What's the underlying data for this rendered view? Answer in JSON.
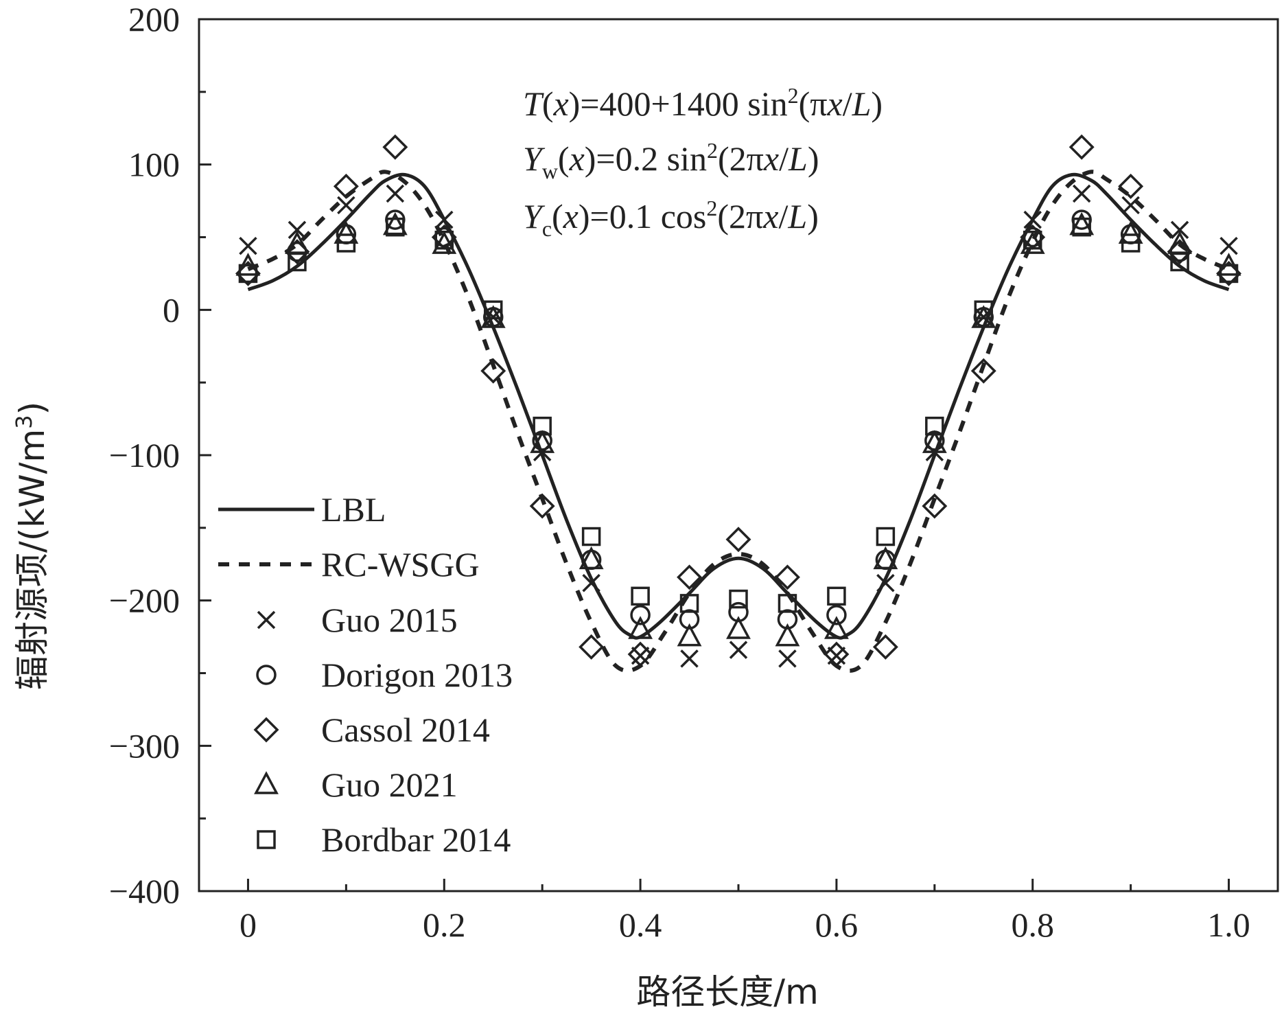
{
  "chart_data": {
    "type": "line",
    "xlabel": "路径长度/m",
    "ylabel": "辐射源项/(kW/m",
    "ylabel_sup": "3",
    "ylabel_end": ")",
    "xlim": [
      -0.05,
      1.05
    ],
    "ylim": [
      -400,
      200
    ],
    "xticks": [
      0,
      0.2,
      0.4,
      0.6,
      0.8,
      1.0
    ],
    "xtick_labels": [
      "0",
      "0.2",
      "0.4",
      "0.6",
      "0.8",
      "1.0"
    ],
    "yticks": [
      200,
      100,
      0,
      -100,
      -200,
      -300,
      -400
    ],
    "ytick_labels": [
      "200",
      "100",
      "0",
      "−100",
      "−200",
      "−300",
      "−400"
    ],
    "annotations": [
      {
        "parts": [
          "T",
          "(",
          "x",
          ")=400+1400 sin",
          "2",
          "(π",
          "x",
          "/",
          "L",
          ")"
        ]
      },
      {
        "parts": [
          "Y",
          "w",
          "(",
          "x",
          ")=0.2 sin",
          "2",
          "(2π",
          "x",
          "/",
          "L",
          ")"
        ]
      },
      {
        "parts": [
          "Y",
          "c",
          "(",
          "x",
          ")=0.1 cos",
          "2",
          "(2π",
          "x",
          "/",
          "L",
          ")"
        ]
      }
    ],
    "legend_position": "left",
    "series": [
      {
        "name": "LBL",
        "style": "solid-line",
        "x": [
          0,
          0.025,
          0.05,
          0.075,
          0.1,
          0.125,
          0.14,
          0.16,
          0.18,
          0.2,
          0.225,
          0.25,
          0.275,
          0.3,
          0.325,
          0.35,
          0.375,
          0.39,
          0.4,
          0.42,
          0.45,
          0.475,
          0.5,
          0.525,
          0.55,
          0.58,
          0.6,
          0.61,
          0.625,
          0.65,
          0.675,
          0.7,
          0.725,
          0.75,
          0.775,
          0.8,
          0.82,
          0.84,
          0.86,
          0.875,
          0.9,
          0.925,
          0.95,
          0.975,
          1.0
        ],
        "y": [
          14,
          20,
          30,
          45,
          62,
          80,
          89,
          93,
          85,
          62,
          28,
          -12,
          -55,
          -100,
          -145,
          -185,
          -215,
          -224,
          -225,
          -215,
          -195,
          -178,
          -171,
          -178,
          -195,
          -215,
          -225,
          -224,
          -215,
          -185,
          -145,
          -100,
          -55,
          -12,
          28,
          62,
          85,
          93,
          89,
          80,
          62,
          45,
          30,
          20,
          14
        ]
      },
      {
        "name": "RC-WSGG",
        "style": "dashed-line",
        "x": [
          0,
          0.025,
          0.05,
          0.075,
          0.1,
          0.125,
          0.14,
          0.16,
          0.18,
          0.2,
          0.225,
          0.25,
          0.275,
          0.3,
          0.325,
          0.35,
          0.375,
          0.4,
          0.425,
          0.45,
          0.475,
          0.5,
          0.525,
          0.55,
          0.575,
          0.6,
          0.625,
          0.65,
          0.675,
          0.7,
          0.725,
          0.75,
          0.775,
          0.8,
          0.82,
          0.84,
          0.86,
          0.875,
          0.9,
          0.925,
          0.95,
          0.975,
          1.0
        ],
        "y": [
          28,
          35,
          45,
          62,
          78,
          90,
          95,
          88,
          72,
          47,
          8,
          -38,
          -85,
          -130,
          -175,
          -215,
          -245,
          -245,
          -222,
          -195,
          -175,
          -168,
          -175,
          -195,
          -222,
          -245,
          -245,
          -215,
          -175,
          -130,
          -85,
          -38,
          8,
          47,
          72,
          88,
          95,
          90,
          78,
          62,
          45,
          35,
          28
        ]
      },
      {
        "name": "Guo 2015",
        "marker": "x",
        "x": [
          0,
          0.05,
          0.1,
          0.15,
          0.2,
          0.25,
          0.3,
          0.35,
          0.4,
          0.45,
          0.5,
          0.55,
          0.6,
          0.65,
          0.7,
          0.75,
          0.8,
          0.85,
          0.9,
          0.95,
          1.0
        ],
        "y": [
          44,
          55,
          72,
          80,
          62,
          -5,
          -98,
          -188,
          -238,
          -240,
          -234,
          -240,
          -238,
          -188,
          -98,
          -5,
          62,
          80,
          72,
          55,
          44
        ]
      },
      {
        "name": "Dorigon 2013",
        "marker": "circle",
        "x": [
          0,
          0.05,
          0.1,
          0.15,
          0.2,
          0.25,
          0.3,
          0.35,
          0.4,
          0.45,
          0.5,
          0.55,
          0.6,
          0.65,
          0.7,
          0.75,
          0.8,
          0.85,
          0.9,
          0.95,
          1.0
        ],
        "y": [
          25,
          40,
          52,
          62,
          50,
          -5,
          -90,
          -172,
          -210,
          -213,
          -208,
          -213,
          -210,
          -172,
          -90,
          -5,
          50,
          62,
          52,
          40,
          25
        ]
      },
      {
        "name": "Cassol 2014",
        "marker": "diamond",
        "x": [
          0,
          0.05,
          0.1,
          0.15,
          0.2,
          0.25,
          0.3,
          0.35,
          0.4,
          0.45,
          0.5,
          0.55,
          0.6,
          0.65,
          0.7,
          0.75,
          0.8,
          0.85,
          0.9,
          0.95,
          1.0
        ],
        "y": [
          25,
          40,
          85,
          112,
          50,
          -42,
          -135,
          -232,
          -237,
          -184,
          -158,
          -184,
          -237,
          -232,
          -135,
          -42,
          50,
          112,
          85,
          40,
          25
        ]
      },
      {
        "name": "Guo 2021",
        "marker": "triangle",
        "x": [
          0,
          0.05,
          0.1,
          0.15,
          0.2,
          0.25,
          0.3,
          0.35,
          0.4,
          0.45,
          0.5,
          0.55,
          0.6,
          0.65,
          0.7,
          0.75,
          0.8,
          0.85,
          0.9,
          0.95,
          1.0
        ],
        "y": [
          30,
          45,
          52,
          58,
          45,
          -6,
          -92,
          -172,
          -220,
          -225,
          -220,
          -225,
          -220,
          -172,
          -92,
          -6,
          45,
          58,
          52,
          45,
          30
        ]
      },
      {
        "name": "Bordbar 2014",
        "marker": "square",
        "x": [
          0,
          0.05,
          0.1,
          0.15,
          0.2,
          0.25,
          0.3,
          0.35,
          0.4,
          0.45,
          0.5,
          0.55,
          0.6,
          0.65,
          0.7,
          0.75,
          0.8,
          0.85,
          0.9,
          0.95,
          1.0
        ],
        "y": [
          25,
          33,
          46,
          57,
          48,
          0,
          -80,
          -156,
          -197,
          -202,
          -199,
          -202,
          -197,
          -156,
          -80,
          0,
          48,
          57,
          46,
          33,
          25
        ]
      }
    ]
  }
}
